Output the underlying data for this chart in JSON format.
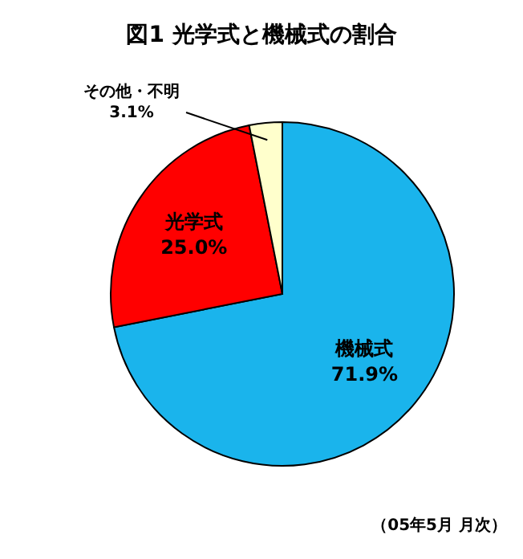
{
  "chart_data": {
    "type": "pie",
    "title": "図1  光学式と機械式の割合",
    "categories": [
      "機械式",
      "光学式",
      "その他・不明"
    ],
    "values": [
      71.9,
      25.0,
      3.1
    ],
    "value_labels": [
      "71.9%",
      "25.0%",
      "3.1%"
    ],
    "colors": [
      "#1ab4ec",
      "#ff0000",
      "#ffffcc"
    ],
    "annotations": [
      "（05年5月 月次）"
    ]
  }
}
